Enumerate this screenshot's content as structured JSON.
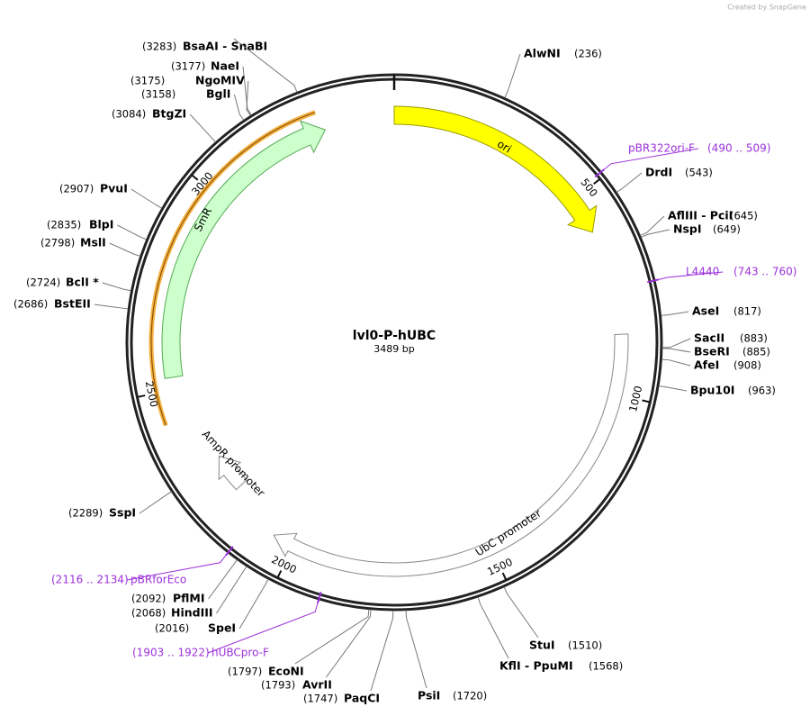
{
  "credit": "Created by SnapGene",
  "title": "lvl0-P-hUBC",
  "length": "3489 bp",
  "ticks": [
    500,
    1000,
    1500,
    2000,
    2500,
    3000
  ],
  "features": [
    {
      "label": "ori"
    },
    {
      "label": "SmR"
    },
    {
      "label": "UbC promoter"
    },
    {
      "label": "AmpR promoter"
    }
  ],
  "sites": [
    {
      "name": "BsaAI  - SnaBI",
      "position": "(3283)"
    },
    {
      "name": "NaeI",
      "position": "(3177)"
    },
    {
      "name": "NgoMIV",
      "position": "(3175)"
    },
    {
      "name": "BglI",
      "position": "(3158)"
    },
    {
      "name": "BtgZI",
      "position": "(3084)"
    },
    {
      "name": "PvuI",
      "position": "(2907)"
    },
    {
      "name": "BlpI",
      "position": "(2835)"
    },
    {
      "name": "MslI",
      "position": "(2798)"
    },
    {
      "name": "BclI *",
      "position": "(2724)"
    },
    {
      "name": "BstEII",
      "position": "(2686)"
    },
    {
      "name": "SspI",
      "position": "(2289)"
    },
    {
      "name": "PflMI",
      "position": "(2092)"
    },
    {
      "name": "HindIII",
      "position": "(2068)"
    },
    {
      "name": "SpeI",
      "position": "(2016)"
    },
    {
      "name": "EcoNI",
      "position": "(1797)"
    },
    {
      "name": "AvrII",
      "position": "(1793)"
    },
    {
      "name": "PaqCI",
      "position": "(1747)"
    },
    {
      "name": "PsiI",
      "position": "(1720)"
    },
    {
      "name": "KflI  - PpuMI",
      "position": "(1568)"
    },
    {
      "name": "StuI",
      "position": "(1510)"
    },
    {
      "name": "AlwNI",
      "position": "(236)"
    },
    {
      "name": "DrdI",
      "position": "(543)"
    },
    {
      "name": "AflIII  - PciI",
      "position": "(645)"
    },
    {
      "name": "NspI",
      "position": "(649)"
    },
    {
      "name": "AseI",
      "position": "(817)"
    },
    {
      "name": "SacII",
      "position": "(883)"
    },
    {
      "name": "BseRI",
      "position": "(885)"
    },
    {
      "name": "AfeI",
      "position": "(908)"
    },
    {
      "name": "Bpu10I",
      "position": "(963)"
    }
  ],
  "primers": [
    {
      "name": "pBR322ori-F",
      "range": "(490 .. 509)"
    },
    {
      "name": "L4440",
      "range": "(743 .. 760)"
    },
    {
      "name": "pBRforEco",
      "range": "(2116 .. 2134)"
    },
    {
      "name": "hUBCpro-F",
      "range": "(1903 .. 1922)"
    }
  ]
}
